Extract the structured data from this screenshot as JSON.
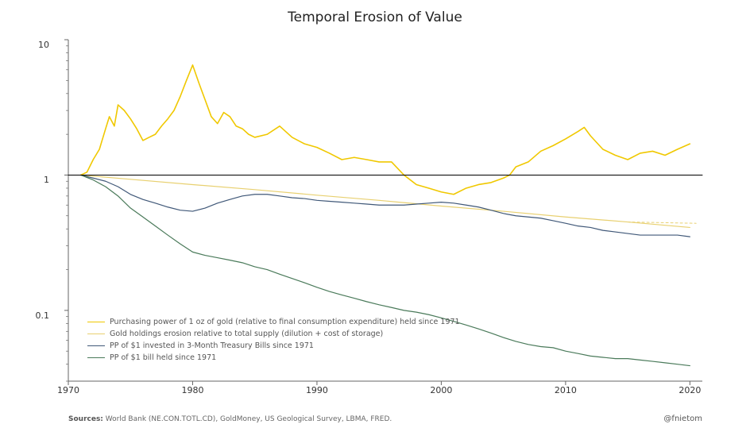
{
  "title": "Temporal Erosion of Value",
  "sources_label": "Sources:",
  "sources_text": " World Bank (NE.CON.TOTL.CD), GoldMoney, US Geological Survey, LBMA, FRED.",
  "handle": "@fnietom",
  "chart": {
    "type": "line",
    "xlim": [
      1970,
      2021
    ],
    "ylim": [
      0.03,
      10
    ],
    "yscale": "log",
    "xticks": [
      1970,
      1980,
      1990,
      2000,
      2010,
      2020
    ],
    "yticks": [
      {
        "v": 0.1,
        "label": "0.1"
      },
      {
        "v": 1,
        "label": "1"
      },
      {
        "v": 10,
        "label": "10"
      }
    ],
    "yticks_minor": [
      0.03,
      0.04,
      0.05,
      0.06,
      0.07,
      0.08,
      0.09,
      0.2,
      0.3,
      0.4,
      0.5,
      0.6,
      0.7,
      0.8,
      0.9,
      2,
      3,
      4,
      5,
      6,
      7,
      8,
      9
    ],
    "background_color": "#ffffff",
    "axis_color": "#666666",
    "title_fontsize": 17,
    "tick_fontsize": 11,
    "legend_fontsize": 9.5,
    "legend_pos": "lower-left-inside",
    "series": [
      {
        "id": "gold_pp",
        "label": "Purchasing power of 1 oz of gold (relative to final consumption expenditure) held since 1971",
        "color": "#f0c800",
        "width": 1.6,
        "x": [
          1971,
          1971.5,
          1972,
          1972.5,
          1973,
          1973.3,
          1973.7,
          1974,
          1974.5,
          1975,
          1975.5,
          1976,
          1976.5,
          1977,
          1977.5,
          1978,
          1978.5,
          1979,
          1979.5,
          1980,
          1980.5,
          1981,
          1981.5,
          1982,
          1982.5,
          1983,
          1983.5,
          1984,
          1984.5,
          1985,
          1986,
          1987,
          1988,
          1989,
          1990,
          1991,
          1992,
          1993,
          1994,
          1995,
          1996,
          1997,
          1998,
          1999,
          2000,
          2001,
          2002,
          2003,
          2004,
          2005,
          2005.5,
          2006,
          2007,
          2008,
          2009,
          2010,
          2011,
          2011.5,
          2012,
          2013,
          2014,
          2015,
          2016,
          2017,
          2018,
          2019,
          2020
        ],
        "y": [
          1.0,
          1.05,
          1.3,
          1.55,
          2.2,
          2.7,
          2.3,
          3.3,
          3.0,
          2.6,
          2.2,
          1.8,
          1.9,
          2.0,
          2.3,
          2.6,
          3.0,
          3.8,
          5.0,
          6.5,
          4.8,
          3.6,
          2.7,
          2.4,
          2.9,
          2.7,
          2.3,
          2.2,
          2.0,
          1.9,
          2.0,
          2.3,
          1.9,
          1.7,
          1.6,
          1.45,
          1.3,
          1.35,
          1.3,
          1.25,
          1.25,
          1.0,
          0.85,
          0.8,
          0.75,
          0.72,
          0.8,
          0.85,
          0.88,
          0.95,
          1.0,
          1.15,
          1.25,
          1.5,
          1.65,
          1.85,
          2.1,
          2.25,
          1.95,
          1.55,
          1.4,
          1.3,
          1.45,
          1.5,
          1.4,
          1.55,
          1.7
        ]
      },
      {
        "id": "gold_dilution",
        "label": "Gold holdings erosion relative to total supply (dilution + cost of storage)",
        "color": "#e8d070",
        "width": 1.2,
        "x": [
          1971,
          1975,
          1980,
          1985,
          1990,
          1995,
          2000,
          2005,
          2010,
          2015,
          2020
        ],
        "y": [
          1.0,
          0.93,
          0.85,
          0.78,
          0.71,
          0.65,
          0.59,
          0.54,
          0.49,
          0.45,
          0.41
        ]
      },
      {
        "id": "gold_dilution_dash",
        "label": null,
        "color": "#e8d070",
        "width": 1.0,
        "dash": "3,3",
        "x": [
          2015,
          2020.5
        ],
        "y": [
          0.45,
          0.44
        ]
      },
      {
        "id": "tbill",
        "label": "PP of $1 invested in 3-Month Treasury Bills since 1971",
        "color": "#405878",
        "width": 1.2,
        "x": [
          1971,
          1972,
          1973,
          1974,
          1975,
          1976,
          1977,
          1978,
          1979,
          1980,
          1981,
          1982,
          1983,
          1984,
          1985,
          1986,
          1987,
          1988,
          1989,
          1990,
          1991,
          1992,
          1993,
          1994,
          1995,
          1996,
          1997,
          1998,
          1999,
          2000,
          2001,
          2002,
          2003,
          2004,
          2005,
          2006,
          2007,
          2008,
          2009,
          2010,
          2011,
          2012,
          2013,
          2014,
          2015,
          2016,
          2017,
          2018,
          2019,
          2020
        ],
        "y": [
          1.0,
          0.95,
          0.9,
          0.82,
          0.72,
          0.66,
          0.62,
          0.58,
          0.55,
          0.54,
          0.57,
          0.62,
          0.66,
          0.7,
          0.72,
          0.72,
          0.7,
          0.68,
          0.67,
          0.65,
          0.64,
          0.63,
          0.62,
          0.61,
          0.6,
          0.6,
          0.6,
          0.61,
          0.62,
          0.63,
          0.62,
          0.6,
          0.58,
          0.55,
          0.52,
          0.5,
          0.49,
          0.48,
          0.46,
          0.44,
          0.42,
          0.41,
          0.39,
          0.38,
          0.37,
          0.36,
          0.36,
          0.36,
          0.36,
          0.35
        ]
      },
      {
        "id": "dollar_bill",
        "label": "PP of $1 bill held since 1971",
        "color": "#4a7a5a",
        "width": 1.2,
        "x": [
          1971,
          1972,
          1973,
          1974,
          1975,
          1976,
          1977,
          1978,
          1979,
          1980,
          1981,
          1982,
          1983,
          1984,
          1985,
          1986,
          1987,
          1988,
          1989,
          1990,
          1991,
          1992,
          1993,
          1994,
          1995,
          1996,
          1997,
          1998,
          1999,
          2000,
          2001,
          2002,
          2003,
          2004,
          2005,
          2006,
          2007,
          2008,
          2009,
          2010,
          2011,
          2012,
          2013,
          2014,
          2015,
          2016,
          2017,
          2018,
          2019,
          2020
        ],
        "y": [
          1.0,
          0.92,
          0.82,
          0.7,
          0.57,
          0.49,
          0.42,
          0.36,
          0.31,
          0.27,
          0.255,
          0.245,
          0.235,
          0.225,
          0.21,
          0.2,
          0.185,
          0.172,
          0.16,
          0.148,
          0.138,
          0.13,
          0.123,
          0.116,
          0.11,
          0.105,
          0.1,
          0.097,
          0.093,
          0.088,
          0.083,
          0.078,
          0.073,
          0.068,
          0.063,
          0.059,
          0.056,
          0.054,
          0.053,
          0.05,
          0.048,
          0.046,
          0.045,
          0.044,
          0.044,
          0.043,
          0.042,
          0.041,
          0.04,
          0.039
        ]
      },
      {
        "id": "unity",
        "label": null,
        "color": "#000000",
        "width": 1.0,
        "x": [
          1970,
          2021
        ],
        "y": [
          1,
          1
        ]
      }
    ]
  }
}
